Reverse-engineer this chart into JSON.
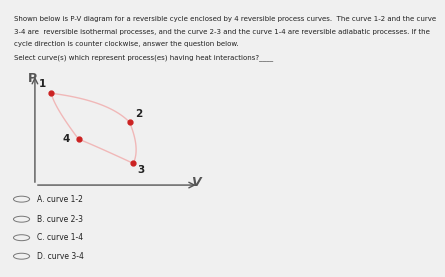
{
  "title_line1": "Shown below is P-V diagram for a reversible cycle enclosed by 4 reversible process curves.  The curve 1-2 and the curve",
  "title_line2": "3-4 are  reversible isothermal processes, and the curve 2-3 and the curve 1-4 are reversible adiabatic processes. If the",
  "title_line3": "cycle direction is counter clockwise, answer the question below.",
  "question_text": "Select curve(s) which represent process(es) having heat interactions?____",
  "choices": [
    "A. curve 1-2",
    "B. curve 2-3",
    "C. curve 1-4",
    "D. curve 3-4"
  ],
  "points": {
    "1": [
      0.15,
      0.8
    ],
    "2": [
      0.58,
      0.56
    ],
    "3": [
      0.6,
      0.22
    ],
    "4": [
      0.3,
      0.42
    ]
  },
  "curve_color": "#f0b8b8",
  "point_color": "#cc2222",
  "bg_color": "#f0f0f0",
  "axis_color": "#555555",
  "text_color": "#222222",
  "p_label": "P",
  "v_label": "V"
}
